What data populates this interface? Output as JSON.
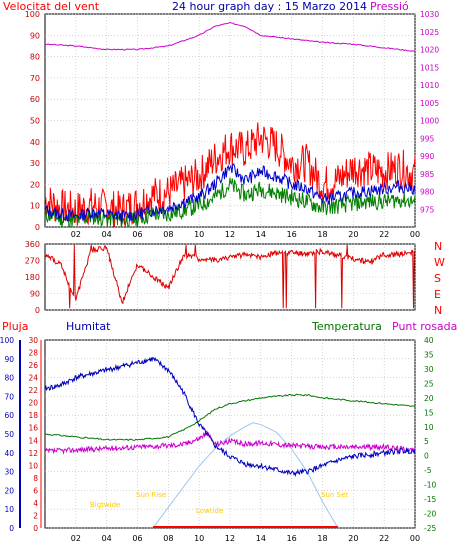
{
  "header": {
    "left_label": "Velocitat del vent",
    "title": "24 hour graph day : 15 Marzo 2014",
    "right_label": "Pressió"
  },
  "mid": {
    "dir_labels": [
      "N",
      "W",
      "S",
      "E",
      "N"
    ]
  },
  "bottom_header": {
    "pluja": "Pluja",
    "humitat": "Humitat",
    "temperatura": "Temperatura",
    "punt_rosada": "Punt rosada"
  },
  "annotations": {
    "twilight_start": "Bigtwide",
    "sun_rise": "Sun Rise",
    "lowtide": "Lowtide",
    "sun_set": "Sun Set"
  },
  "colors": {
    "wind_gust": "#ff0000",
    "wind_avg": "#0000cc",
    "wind_speed": "#008000",
    "pressure": "#cc00cc",
    "direction": "#dd0000",
    "humidity": "#0000bb",
    "temperature": "#007700",
    "dewpoint": "#cc00cc",
    "solar": "#9ec6f0",
    "rain": "#ff0000",
    "annotation": "#ffcc00"
  },
  "chart_data": [
    {
      "type": "line",
      "title": "24 hour graph day : 15 Marzo 2014",
      "x_ticks": [
        "02",
        "04",
        "06",
        "08",
        "10",
        "12",
        "14",
        "16",
        "18",
        "20",
        "22",
        "00"
      ],
      "y_left": {
        "label": "Velocitat del vent",
        "range": [
          0,
          100
        ],
        "ticks": [
          "0",
          "10",
          "20",
          "30",
          "40",
          "50",
          "60",
          "70",
          "80",
          "90",
          "100"
        ]
      },
      "y_right": {
        "label": "Pressió",
        "range": [
          970,
          1030
        ],
        "ticks": [
          "975",
          "980",
          "985",
          "990",
          "995",
          "1000",
          "1005",
          "1010",
          "1015",
          "1020",
          "1025",
          "1030"
        ]
      },
      "series": [
        {
          "name": "Pressió",
          "axis": "right",
          "color": "#cc00cc",
          "points": [
            [
              0,
              1021.5
            ],
            [
              2,
              1021
            ],
            [
              4,
              1020
            ],
            [
              6,
              1020
            ],
            [
              8,
              1021
            ],
            [
              10,
              1024
            ],
            [
              11,
              1026.5
            ],
            [
              12,
              1027.5
            ],
            [
              13,
              1026.5
            ],
            [
              14,
              1024
            ],
            [
              16,
              1023
            ],
            [
              18,
              1022
            ],
            [
              20,
              1021.5
            ],
            [
              22,
              1020.5
            ],
            [
              24,
              1019.5
            ]
          ]
        },
        {
          "name": "Wind gust",
          "axis": "left",
          "color": "#ff0000",
          "points": [
            [
              0,
              13
            ],
            [
              1,
              9
            ],
            [
              2,
              8
            ],
            [
              3,
              10
            ],
            [
              4,
              9
            ],
            [
              5,
              8
            ],
            [
              6,
              11
            ],
            [
              7,
              15
            ],
            [
              8,
              16
            ],
            [
              9,
              20
            ],
            [
              10,
              24
            ],
            [
              11,
              32
            ],
            [
              12,
              38
            ],
            [
              13,
              36
            ],
            [
              14,
              42
            ],
            [
              15,
              38
            ],
            [
              16,
              30
            ],
            [
              17,
              30
            ],
            [
              18,
              20
            ],
            [
              19,
              22
            ],
            [
              20,
              28
            ],
            [
              21,
              27
            ],
            [
              22,
              26
            ],
            [
              23,
              28
            ],
            [
              24,
              25
            ]
          ]
        },
        {
          "name": "Wind average",
          "axis": "left",
          "color": "#0000cc",
          "points": [
            [
              0,
              8
            ],
            [
              1,
              6
            ],
            [
              2,
              5
            ],
            [
              3,
              7
            ],
            [
              4,
              6
            ],
            [
              5,
              5
            ],
            [
              6,
              6
            ],
            [
              7,
              8
            ],
            [
              8,
              9
            ],
            [
              9,
              12
            ],
            [
              10,
              14
            ],
            [
              11,
              20
            ],
            [
              12,
              28
            ],
            [
              13,
              22
            ],
            [
              14,
              26
            ],
            [
              15,
              24
            ],
            [
              16,
              20
            ],
            [
              17,
              18
            ],
            [
              18,
              13
            ],
            [
              19,
              14
            ],
            [
              20,
              16
            ],
            [
              21,
              17
            ],
            [
              22,
              18
            ],
            [
              23,
              19
            ],
            [
              24,
              18
            ]
          ]
        },
        {
          "name": "Wind speed",
          "axis": "left",
          "color": "#008000",
          "points": [
            [
              0,
              6
            ],
            [
              1,
              4
            ],
            [
              2,
              3
            ],
            [
              3,
              5
            ],
            [
              4,
              4
            ],
            [
              5,
              3
            ],
            [
              6,
              4
            ],
            [
              7,
              6
            ],
            [
              8,
              6
            ],
            [
              9,
              8
            ],
            [
              10,
              10
            ],
            [
              11,
              14
            ],
            [
              12,
              20
            ],
            [
              13,
              15
            ],
            [
              14,
              18
            ],
            [
              15,
              16
            ],
            [
              16,
              14
            ],
            [
              17,
              12
            ],
            [
              18,
              9
            ],
            [
              19,
              10
            ],
            [
              20,
              11
            ],
            [
              21,
              12
            ],
            [
              22,
              12
            ],
            [
              23,
              13
            ],
            [
              24,
              12
            ]
          ]
        }
      ]
    },
    {
      "type": "line",
      "title": "",
      "y_left": {
        "range": [
          0,
          360
        ],
        "ticks": [
          "0",
          "90",
          "180",
          "270",
          "360"
        ]
      },
      "series": [
        {
          "name": "Wind direction",
          "color": "#dd0000",
          "points": [
            [
              0,
              300
            ],
            [
              1,
              250
            ],
            [
              2,
              60
            ],
            [
              3,
              330
            ],
            [
              4,
              340
            ],
            [
              5,
              40
            ],
            [
              6,
              250
            ],
            [
              7,
              180
            ],
            [
              8,
              120
            ],
            [
              9,
              300
            ],
            [
              10,
              280
            ],
            [
              11,
              270
            ],
            [
              12,
              290
            ],
            [
              13,
              300
            ],
            [
              14,
              290
            ],
            [
              15,
              310
            ],
            [
              16,
              315
            ],
            [
              17,
              310
            ],
            [
              18,
              320
            ],
            [
              19,
              300
            ],
            [
              20,
              280
            ],
            [
              21,
              260
            ],
            [
              22,
              300
            ],
            [
              23,
              305
            ],
            [
              24,
              315
            ]
          ]
        }
      ]
    },
    {
      "type": "line",
      "title": "",
      "y_left": {
        "label": "Humitat",
        "range": [
          0,
          100
        ],
        "ticks": [
          "0",
          "10",
          "20",
          "30",
          "40",
          "50",
          "60",
          "70",
          "80",
          "90",
          "100"
        ]
      },
      "y_left_inner": {
        "label": "Pluja",
        "range": [
          0,
          30
        ],
        "ticks": [
          "0",
          "2",
          "4",
          "6",
          "8",
          "10",
          "12",
          "14",
          "16",
          "18",
          "20",
          "22",
          "24",
          "26",
          "28",
          "30"
        ]
      },
      "y_right": {
        "label": "Temperatura",
        "range": [
          -25,
          40
        ],
        "ticks": [
          "-25",
          "-20",
          "-15",
          "-10",
          "-5",
          "0",
          "5",
          "10",
          "15",
          "20",
          "25",
          "30",
          "35",
          "40"
        ]
      },
      "series": [
        {
          "name": "Humitat",
          "axis": "left",
          "color": "#0000bb",
          "points": [
            [
              0,
              74
            ],
            [
              1,
              76
            ],
            [
              2,
              80
            ],
            [
              3,
              82
            ],
            [
              4,
              84
            ],
            [
              5,
              86
            ],
            [
              6,
              88
            ],
            [
              7,
              90
            ],
            [
              8,
              84
            ],
            [
              9,
              72
            ],
            [
              10,
              55
            ],
            [
              10.5,
              50
            ],
            [
              11,
              44
            ],
            [
              12,
              38
            ],
            [
              13,
              34
            ],
            [
              14,
              33
            ],
            [
              15,
              31
            ],
            [
              16,
              29
            ],
            [
              17,
              30
            ],
            [
              18,
              33
            ],
            [
              19,
              36
            ],
            [
              20,
              38
            ],
            [
              21,
              39
            ],
            [
              22,
              40
            ],
            [
              23,
              41
            ],
            [
              24,
              41
            ]
          ]
        },
        {
          "name": "Temperatura",
          "axis": "right",
          "color": "#007700",
          "points": [
            [
              0,
              7.5
            ],
            [
              2,
              6.5
            ],
            [
              4,
              5.5
            ],
            [
              6,
              5.5
            ],
            [
              8,
              6.5
            ],
            [
              9,
              9
            ],
            [
              10,
              12
            ],
            [
              11,
              16
            ],
            [
              12,
              18
            ],
            [
              13,
              19
            ],
            [
              14,
              20
            ],
            [
              16,
              21
            ],
            [
              17,
              21
            ],
            [
              18,
              20
            ],
            [
              19,
              19.5
            ],
            [
              20,
              19
            ],
            [
              22,
              18
            ],
            [
              24,
              17
            ]
          ]
        },
        {
          "name": "Punt rosada",
          "axis": "right",
          "color": "#cc00cc",
          "points": [
            [
              0,
              1.5
            ],
            [
              2,
              2
            ],
            [
              4,
              2.5
            ],
            [
              6,
              3
            ],
            [
              8,
              3.5
            ],
            [
              9,
              4
            ],
            [
              10,
              6
            ],
            [
              10.5,
              8
            ],
            [
              11,
              4
            ],
            [
              12,
              5
            ],
            [
              13,
              4
            ],
            [
              14,
              4.5
            ],
            [
              16,
              3.5
            ],
            [
              18,
              3
            ],
            [
              20,
              3
            ],
            [
              22,
              3
            ],
            [
              24,
              2
            ]
          ]
        },
        {
          "name": "Solar",
          "axis": "left",
          "color": "#9ec6f0",
          "points": [
            [
              7,
              0
            ],
            [
              8,
              11
            ],
            [
              9,
              22
            ],
            [
              10,
              33
            ],
            [
              11,
              42
            ],
            [
              12,
              49
            ],
            [
              13,
              54
            ],
            [
              13.5,
              56
            ],
            [
              14,
              55
            ],
            [
              15,
              51
            ],
            [
              16,
              42
            ],
            [
              17,
              30
            ],
            [
              18,
              14
            ],
            [
              19,
              0
            ]
          ]
        }
      ]
    }
  ]
}
